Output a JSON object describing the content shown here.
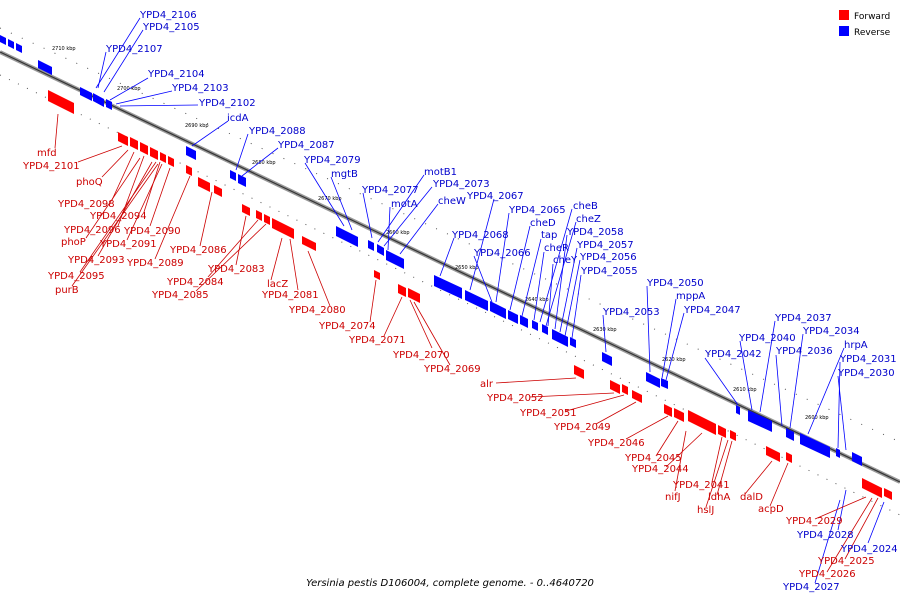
{
  "caption": "Yersinia pestis D106004, complete genome. - 0..4640720",
  "legend": [
    {
      "label": "Forward",
      "color": "#ff0000"
    },
    {
      "label": "Reverse",
      "color": "#0000ff"
    }
  ],
  "colors": {
    "forward": "#ff0000",
    "reverse": "#0000ff",
    "forward_label": "#cc0000",
    "reverse_label": "#0000cc",
    "backbone": "#888888"
  },
  "ticks": [
    "2710 kbp",
    "2700 kbp",
    "2690 kbp",
    "2680 kbp",
    "2670 kbp",
    "2660 kbp",
    "2650 kbp",
    "2640 kbp",
    "2630 kbp",
    "2620 kbp",
    "2610 kbp",
    "2600 kbp"
  ],
  "forward_labels": [
    "mfd",
    "YPD4_2101",
    "phoQ",
    "YPD4_2098",
    "YPD4_2094",
    "YPD4_2096",
    "phoP",
    "YPD4_2090",
    "YPD4_2091",
    "YPD4_2093",
    "YPD4_2089",
    "YPD4_2086",
    "YPD4_2095",
    "purB",
    "YPD4_2083",
    "YPD4_2084",
    "YPD4_2085",
    "lacZ",
    "YPD4_2081",
    "YPD4_2080",
    "YPD4_2074",
    "YPD4_2071",
    "YPD4_2070",
    "YPD4_2069",
    "alr",
    "YPD4_2052",
    "YPD4_2051",
    "YPD4_2049",
    "YPD4_2046",
    "YPD4_2045",
    "YPD4_2044",
    "nifJ",
    "YPD4_2041",
    "ldhA",
    "hslJ",
    "dalD",
    "acpD",
    "YPD4_2029",
    "YPD4_2025",
    "YPD4_2026"
  ],
  "reverse_labels": [
    "YPD4_2106",
    "YPD4_2105",
    "YPD4_2107",
    "YPD4_2104",
    "YPD4_2103",
    "YPD4_2102",
    "icdA",
    "YPD4_2088",
    "YPD4_2087",
    "YPD4_2079",
    "mgtB",
    "motB1",
    "YPD4_2073",
    "YPD4_2077",
    "motA",
    "cheW",
    "YPD4_2067",
    "YPD4_2065",
    "YPD4_2068",
    "cheD",
    "cheB",
    "cheZ",
    "tap",
    "YPD4_2058",
    "cheR",
    "YPD4_2057",
    "YPD4_2066",
    "cheY",
    "YPD4_2056",
    "YPD4_2055",
    "YPD4_2050",
    "mppA",
    "YPD4_2053",
    "YPD4_2047",
    "YPD4_2037",
    "YPD4_2034",
    "YPD4_2040",
    "hrpA",
    "YPD4_2042",
    "YPD4_2036",
    "YPD4_2031",
    "YPD4_2030",
    "YPD4_2028",
    "YPD4_2024",
    "YPD4_2027"
  ]
}
